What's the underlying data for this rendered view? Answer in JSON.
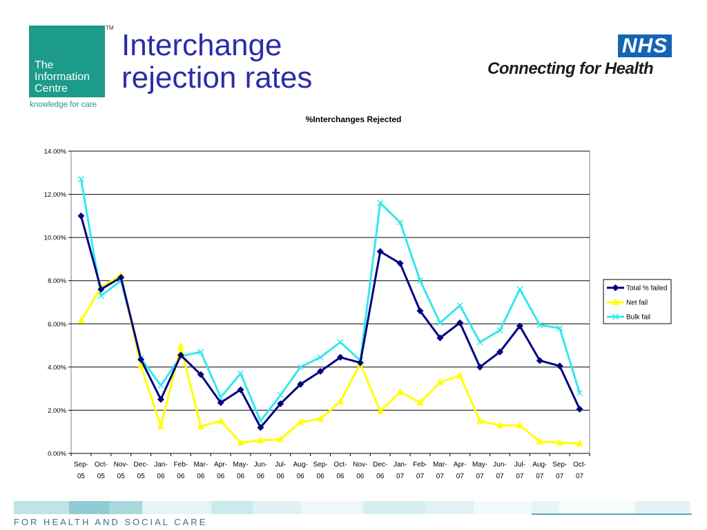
{
  "slide": {
    "title_lines": [
      "Interchange",
      "rejection rates"
    ],
    "footer_text": "FOR HEALTH AND SOCIAL CARE"
  },
  "logo_left": {
    "lines": [
      "The",
      "Information",
      "Centre"
    ],
    "tagline": "knowledge for care",
    "tm": "TM",
    "color": "#1c9a8a"
  },
  "logo_right": {
    "badge": "NHS",
    "tagline": "Connecting for Health",
    "color": "#1464b4"
  },
  "chart_data": {
    "type": "line",
    "title": "%Interchanges Rejected",
    "xlabel": "",
    "ylabel": "",
    "ylim": [
      0,
      14
    ],
    "y_ticks": [
      "0.00%",
      "2.00%",
      "4.00%",
      "6.00%",
      "8.00%",
      "10.00%",
      "12.00%",
      "14.00%"
    ],
    "y_tick_values": [
      0,
      2,
      4,
      6,
      8,
      10,
      12,
      14
    ],
    "grid": true,
    "legend_position": "right",
    "categories": [
      [
        "Sep-",
        "05"
      ],
      [
        "Oct-",
        "05"
      ],
      [
        "Nov-",
        "05"
      ],
      [
        "Dec-",
        "05"
      ],
      [
        "Jan-",
        "06"
      ],
      [
        "Feb-",
        "06"
      ],
      [
        "Mar-",
        "06"
      ],
      [
        "Apr-",
        "06"
      ],
      [
        "May-",
        "06"
      ],
      [
        "Jun-",
        "06"
      ],
      [
        "Jul-",
        "06"
      ],
      [
        "Aug-",
        "06"
      ],
      [
        "Sep-",
        "06"
      ],
      [
        "Oct-",
        "06"
      ],
      [
        "Nov-",
        "06"
      ],
      [
        "Dec-",
        "06"
      ],
      [
        "Jan-",
        "07"
      ],
      [
        "Feb-",
        "07"
      ],
      [
        "Mar-",
        "07"
      ],
      [
        "Apr-",
        "07"
      ],
      [
        "May-",
        "07"
      ],
      [
        "Jun-",
        "07"
      ],
      [
        "Jul-",
        "07"
      ],
      [
        "Aug-",
        "07"
      ],
      [
        "Sep-",
        "07"
      ],
      [
        "Oct-",
        "07"
      ]
    ],
    "series": [
      {
        "name": "Total % failed",
        "color": "#000080",
        "marker": "diamond",
        "values": [
          11.0,
          7.6,
          8.15,
          4.35,
          2.5,
          4.55,
          3.65,
          2.35,
          2.95,
          1.2,
          2.3,
          3.2,
          3.8,
          4.45,
          4.2,
          9.35,
          8.8,
          6.6,
          5.35,
          6.05,
          4.0,
          4.7,
          5.9,
          4.3,
          4.05,
          2.05
        ]
      },
      {
        "name": "Net fail",
        "color": "#ffff00",
        "marker": "triangle",
        "values": [
          6.15,
          7.7,
          8.25,
          4.05,
          1.25,
          4.95,
          1.25,
          1.5,
          0.5,
          0.6,
          0.65,
          1.45,
          1.6,
          2.4,
          4.15,
          1.95,
          2.85,
          2.35,
          3.3,
          3.6,
          1.5,
          1.3,
          1.3,
          0.55,
          0.5,
          0.45
        ]
      },
      {
        "name": "Bulk fail",
        "color": "#33e8ee",
        "marker": "x",
        "values": [
          12.7,
          7.3,
          8.0,
          4.4,
          3.15,
          4.5,
          4.7,
          2.6,
          3.7,
          1.5,
          2.7,
          4.0,
          4.45,
          5.15,
          4.3,
          11.6,
          10.7,
          8.0,
          6.05,
          6.85,
          5.15,
          5.7,
          7.6,
          5.95,
          5.8,
          2.8
        ]
      }
    ]
  }
}
